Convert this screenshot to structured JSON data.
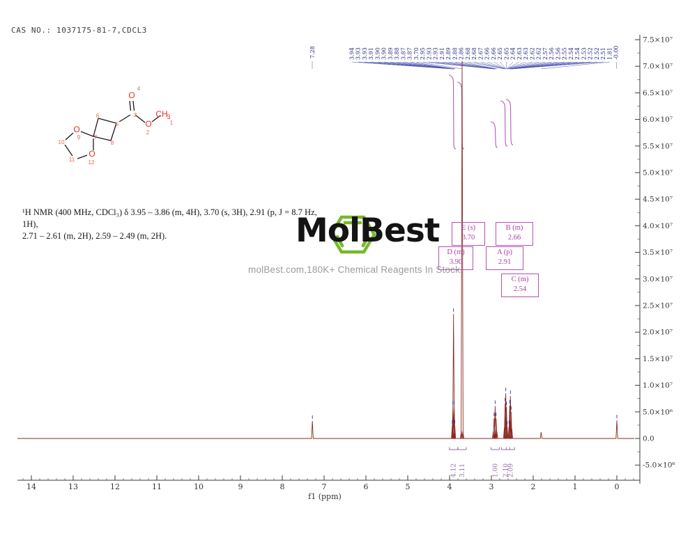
{
  "header": {
    "cas_line": "CAS NO.: 1037175-81-7,CDCL3"
  },
  "nmr_text": {
    "line1": "¹H NMR (400 MHz, CDCl₃) δ 3.95 – 3.86 (m, 4H), 3.70 (s, 3H), 2.91 (p, J = 8.7 Hz, 1H),",
    "line2": "2.71 – 2.61 (m, 2H), 2.59 – 2.49 (m, 2H)."
  },
  "logo": {
    "brand": "MolBest",
    "tagline": "molBest.com,180K+ Chemical Reagents In Stock.",
    "green": "#76b82a"
  },
  "molecule": {
    "atoms": {
      "o4": "O",
      "o2": "O",
      "o9": "O",
      "o12": "O",
      "ch": "CH",
      "ch_sub": "3"
    },
    "locants": [
      "1",
      "2",
      "3",
      "4",
      "5",
      "6",
      "7",
      "8",
      "9",
      "10",
      "11",
      "12"
    ]
  },
  "annotations": {
    "boxes": [
      {
        "id": "E (s)",
        "shift": "3.70"
      },
      {
        "id": "B (m)",
        "shift": "2.66"
      },
      {
        "id": "D (m)",
        "shift": "3.90"
      },
      {
        "id": "A (p)",
        "shift": "2.91"
      },
      {
        "id": "C (m)",
        "shift": "2.54"
      }
    ]
  },
  "chart_data": {
    "type": "line",
    "kind": "1H NMR spectrum",
    "title": "",
    "xlabel": "f1 (ppm)",
    "x_ticks": [
      "14",
      "13",
      "12",
      "11",
      "10",
      "9",
      "8",
      "7",
      "6",
      "5",
      "4",
      "3",
      "2",
      "1",
      "0"
    ],
    "xlim": [
      14.35,
      -0.55
    ],
    "ylim_e6": [
      -7.5,
      78
    ],
    "grid": false,
    "y_ticks": [
      {
        "v_e6": 75,
        "label": "7.5×10⁷"
      },
      {
        "v_e6": 70,
        "label": "7.0×10⁷"
      },
      {
        "v_e6": 65,
        "label": "6.5×10⁷"
      },
      {
        "v_e6": 60,
        "label": "6.0×10⁷"
      },
      {
        "v_e6": 55,
        "label": "5.5×10⁷"
      },
      {
        "v_e6": 50,
        "label": "5.0×10⁷"
      },
      {
        "v_e6": 45,
        "label": "4.5×10⁷"
      },
      {
        "v_e6": 40,
        "label": "4.0×10⁷"
      },
      {
        "v_e6": 35,
        "label": "3.5×10⁷"
      },
      {
        "v_e6": 30,
        "label": "3.0×10⁷"
      },
      {
        "v_e6": 25,
        "label": "2.5×10⁷"
      },
      {
        "v_e6": 20,
        "label": "2.0×10⁷"
      },
      {
        "v_e6": 15,
        "label": "1.5×10⁷"
      },
      {
        "v_e6": 10,
        "label": "1.0×10⁷"
      },
      {
        "v_e6": 5,
        "label": "5.0×10⁶"
      },
      {
        "v_e6": 0,
        "label": "0.0"
      },
      {
        "v_e6": -5,
        "label": "-5.0×10⁶"
      }
    ],
    "solvent_peak_label": "7.28",
    "peak_label_row": [
      "3.94",
      "3.93",
      "3.93",
      "3.91",
      "3.90",
      "3.90",
      "3.89",
      "3.88",
      "3.87",
      "3.87",
      "3.70",
      "2.95",
      "2.93",
      "2.93",
      "2.91",
      "2.89",
      "2.88",
      "2.86",
      "2.68",
      "2.68",
      "2.67",
      "2.66",
      "2.66",
      "2.65",
      "2.65",
      "2.64",
      "2.63",
      "2.63",
      "2.62",
      "2.62",
      "2.57",
      "2.56",
      "2.56",
      "2.55",
      "2.54",
      "2.54",
      "2.53",
      "2.52",
      "2.52",
      "2.51",
      "1.81",
      "-0.00"
    ],
    "spikes_ppm_intensityE6": [
      [
        7.28,
        3.3
      ],
      [
        3.935,
        2.4
      ],
      [
        3.92,
        6.0
      ],
      [
        3.905,
        23.4
      ],
      [
        3.89,
        6.0
      ],
      [
        3.875,
        2.4
      ],
      [
        3.72,
        1.4
      ],
      [
        3.7,
        71.0
      ],
      [
        3.68,
        1.4
      ],
      [
        2.955,
        1.3
      ],
      [
        2.935,
        3.8
      ],
      [
        2.91,
        6.1
      ],
      [
        2.888,
        3.8
      ],
      [
        2.868,
        1.3
      ],
      [
        2.69,
        2.0
      ],
      [
        2.672,
        6.6
      ],
      [
        2.656,
        8.5
      ],
      [
        2.64,
        5.9
      ],
      [
        2.623,
        2.2
      ],
      [
        2.578,
        2.3
      ],
      [
        2.561,
        6.2
      ],
      [
        2.545,
        8.0
      ],
      [
        2.528,
        5.0
      ],
      [
        2.512,
        1.9
      ],
      [
        1.81,
        1.2
      ],
      [
        0.0,
        3.4
      ]
    ],
    "integrals": [
      {
        "label": "4.12",
        "ppm": 3.905
      },
      {
        "label": "3.11",
        "ppm": 3.7
      },
      {
        "label": "1.00",
        "ppm": 2.91
      },
      {
        "label": "2.10",
        "ppm": 2.66
      },
      {
        "label": "2.09",
        "ppm": 2.545
      }
    ]
  }
}
